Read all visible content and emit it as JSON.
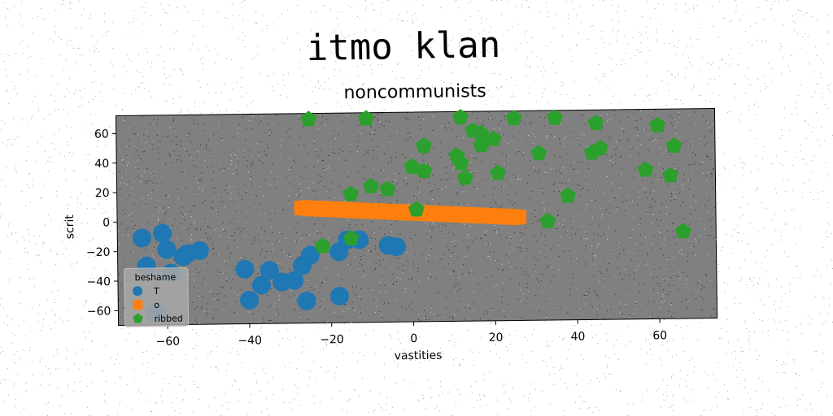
{
  "figure": {
    "suptitle": "itmo klan"
  },
  "colors": {
    "plot_bg": "#808080",
    "blue": "#1f77b4",
    "orange": "#ff7f0e",
    "green": "#2ca02c"
  },
  "chart_data": {
    "type": "scatter",
    "title": "noncommunists",
    "xlabel": "vastities",
    "ylabel": "scrit",
    "xlim": [
      -72,
      74
    ],
    "ylim": [
      -70,
      72
    ],
    "xticks": [
      -60,
      -40,
      -20,
      0,
      20,
      40,
      60
    ],
    "yticks": [
      -60,
      -40,
      -20,
      0,
      20,
      40,
      60
    ],
    "grid": false,
    "legend": {
      "title": "beshame",
      "position": "lower-left"
    },
    "series": [
      {
        "name": "T",
        "marker": "circle",
        "color": "#1f77b4",
        "x": [
          -66,
          -61,
          -60,
          -56,
          -55,
          -52,
          -41,
          -40,
          -37,
          -35,
          -32,
          -29,
          -27,
          -26,
          -25,
          -18,
          -18,
          -16,
          -13,
          -6,
          -4,
          -63,
          -65,
          -59
        ],
        "y": [
          -11,
          -8,
          -19,
          -24,
          -22,
          -20,
          -33,
          -54,
          -44,
          -34,
          -42,
          -41,
          -31,
          -55,
          -24,
          -52,
          -22,
          -14,
          -14,
          -18,
          -19,
          -62,
          -30,
          -35
        ]
      },
      {
        "name": "o",
        "marker": "square",
        "color": "#ff7f0e",
        "x": [
          -27,
          26
        ],
        "y": [
          8,
          0
        ]
      },
      {
        "name": "ribbed",
        "marker": "pentagon",
        "color": "#2ca02c",
        "x": [
          -25,
          -11,
          12,
          25,
          35,
          45,
          60,
          -22,
          -15,
          -10,
          -6,
          0,
          3,
          3,
          11,
          12,
          13,
          15,
          17,
          17,
          20,
          21,
          31,
          33,
          38,
          44,
          46,
          57,
          63,
          64,
          66,
          -15,
          1
        ],
        "y": [
          68,
          68,
          68,
          67,
          67,
          63,
          61,
          -18,
          17,
          22,
          20,
          35,
          32,
          49,
          42,
          37,
          27,
          59,
          57,
          49,
          53,
          30,
          43,
          -3,
          14,
          43,
          46,
          31,
          27,
          47,
          -11,
          -13,
          6
        ]
      }
    ]
  }
}
